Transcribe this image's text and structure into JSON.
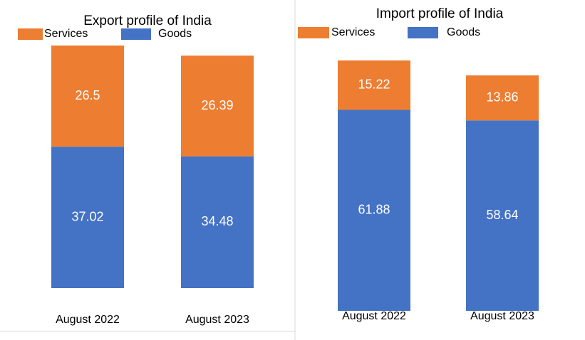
{
  "chart_data": [
    {
      "type": "bar",
      "stacked": true,
      "title": "Export profile of India",
      "categories": [
        "August 2022",
        "August 2023"
      ],
      "series": [
        {
          "name": "Services",
          "color": "#ed7d31",
          "values": [
            26.5,
            26.39
          ]
        },
        {
          "name": "Goods",
          "color": "#4472c4",
          "values": [
            37.02,
            34.48
          ]
        }
      ]
    },
    {
      "type": "bar",
      "stacked": true,
      "title": "Import profile of India",
      "categories": [
        "August 2022",
        "August 2023"
      ],
      "series": [
        {
          "name": "Services",
          "color": "#ed7d31",
          "values": [
            15.22,
            13.86
          ]
        },
        {
          "name": "Goods",
          "color": "#4472c4",
          "values": [
            61.88,
            58.64
          ]
        }
      ]
    }
  ]
}
